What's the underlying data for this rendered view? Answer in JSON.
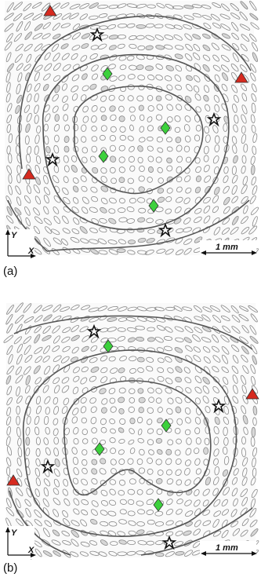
{
  "panels": [
    {
      "label": "(a)",
      "scale_label": "1 mm",
      "axis_y": "Y",
      "axis_x": "X"
    },
    {
      "label": "(b)",
      "scale_label": "1 mm",
      "axis_y": "Y",
      "axis_x": "X"
    }
  ],
  "marker_legend": {
    "triangle_color": "#d62a1f",
    "diamond_color": "#3cd13c",
    "contour_color": "#555555",
    "ellipse_color": "#8a8a8a"
  }
}
